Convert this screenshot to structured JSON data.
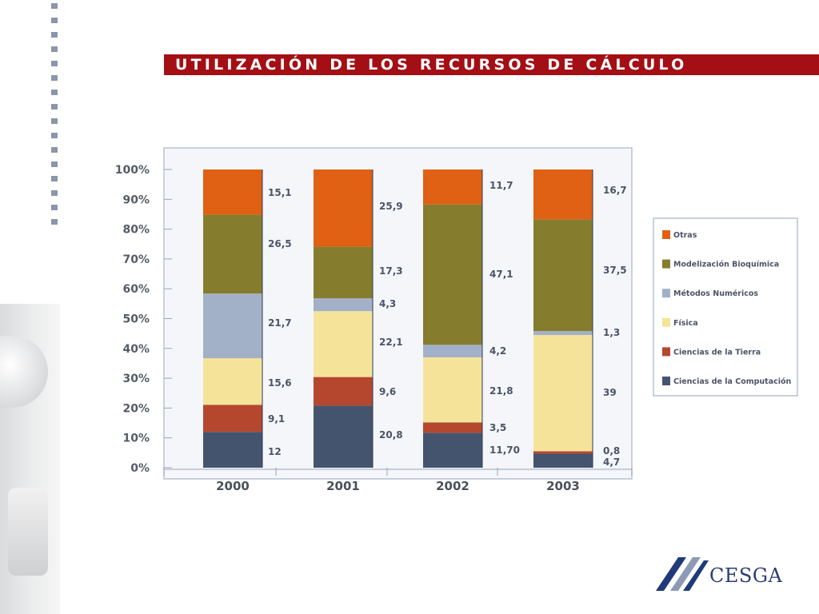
{
  "slide": {
    "title": "UTILIZACIÓN DE LOS RECURSOS DE CÁLCULO",
    "logo_text": "CESGA",
    "colors": {
      "title_bar": "#a30f14",
      "dots": "#8d95a8",
      "plot_bg": "#f4f6fa",
      "plot_border": "#b7c3d3"
    }
  },
  "chart_data": {
    "type": "bar",
    "stacked": true,
    "title": "",
    "xlabel": "",
    "ylabel": "",
    "ylim": [
      0,
      100
    ],
    "y_ticks": [
      "0%",
      "10%",
      "20%",
      "30%",
      "40%",
      "50%",
      "60%",
      "70%",
      "80%",
      "90%",
      "100%"
    ],
    "categories": [
      "2000",
      "2001",
      "2002",
      "2003"
    ],
    "legend_position": "right",
    "series": [
      {
        "name": "Ciencias de la Computación",
        "color": "#44546f",
        "values": [
          12,
          20.8,
          11.7,
          4.7
        ],
        "labels": [
          "12",
          "20,8",
          "11,70",
          "4,7"
        ]
      },
      {
        "name": "Ciencias de la Tierra",
        "color": "#b5472f",
        "values": [
          9.1,
          9.6,
          3.5,
          0.8
        ],
        "labels": [
          "9,1",
          "9,6",
          "3,5",
          "0,8"
        ]
      },
      {
        "name": "Física",
        "color": "#f6e39a",
        "values": [
          15.6,
          22.1,
          21.8,
          39
        ],
        "labels": [
          "15,6",
          "22,1",
          "21,8",
          "39"
        ]
      },
      {
        "name": "Métodos Numéricos",
        "color": "#a3b1c8",
        "values": [
          21.7,
          4.3,
          4.2,
          1.3
        ],
        "labels": [
          "21,7",
          "4,3",
          "4,2",
          "1,3"
        ]
      },
      {
        "name": "Modelización Bioquímica",
        "color": "#867c2e",
        "values": [
          26.5,
          17.3,
          47.1,
          37.5
        ],
        "labels": [
          "26,5",
          "17,3",
          "47,1",
          "37,5"
        ]
      },
      {
        "name": "Otras",
        "color": "#e06014",
        "values": [
          15.1,
          25.9,
          11.7,
          16.7
        ],
        "labels": [
          "15,1",
          "25,9",
          "11,7",
          "16,7"
        ]
      }
    ]
  }
}
